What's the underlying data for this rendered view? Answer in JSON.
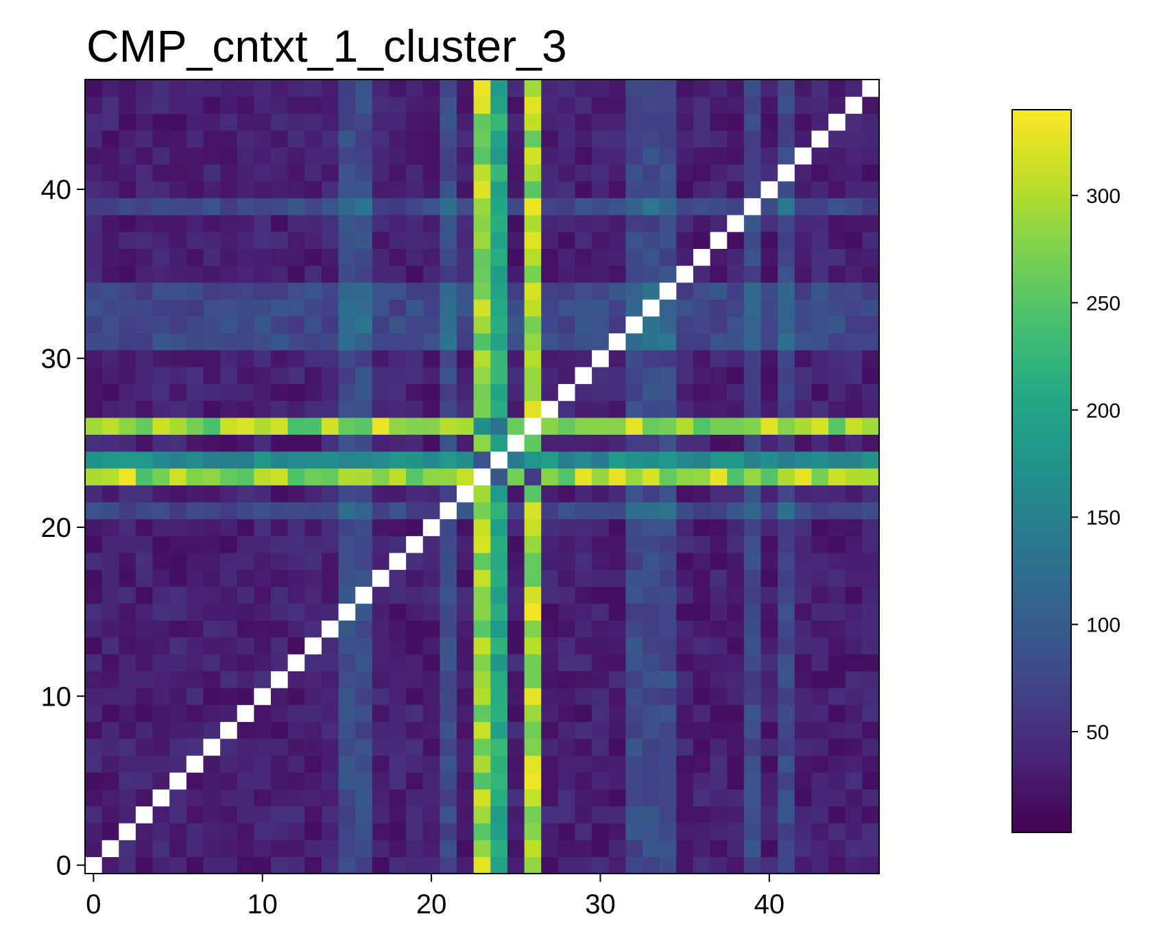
{
  "chart_data": {
    "type": "heatmap",
    "title": "CMP_cntxt_1_cluster_3",
    "xlabel": "",
    "ylabel": "",
    "size": 47,
    "xlim": [
      -0.5,
      46.5
    ],
    "ylim": [
      -0.5,
      46.5
    ],
    "origin": "lower",
    "x_ticks": [
      0,
      10,
      20,
      30,
      40
    ],
    "y_ticks": [
      0,
      10,
      20,
      30,
      40
    ],
    "x_tick_labels": [
      "0",
      "10",
      "20",
      "30",
      "40"
    ],
    "y_tick_labels": [
      "0",
      "10",
      "20",
      "30",
      "40"
    ],
    "colormap": "viridis",
    "colorbar": {
      "range": [
        3,
        340
      ],
      "ticks": [
        50,
        100,
        150,
        200,
        250,
        300
      ],
      "tick_labels": [
        "50",
        "100",
        "150",
        "200",
        "250",
        "300"
      ]
    },
    "diagonal": "missing (drawn white)",
    "base_background": 30,
    "hub_rows": {
      "23": {
        "values_range": [
          240,
          335
        ],
        "note": "bright yellow-green band"
      },
      "24": {
        "values_range": [
          140,
          190
        ],
        "note": "teal band"
      },
      "26": {
        "values_range": [
          240,
          330
        ],
        "note": "bright yellow-green band"
      }
    },
    "hub_cols": {
      "23": {
        "values_range": [
          240,
          335
        ]
      },
      "24": {
        "values_range": [
          180,
          230
        ]
      },
      "26": {
        "values_range": [
          250,
          335
        ]
      }
    },
    "moderate_rows": [
      21,
      31,
      32,
      33,
      34,
      39
    ],
    "moderate_cols": [
      15,
      16,
      21,
      32,
      33,
      34,
      39,
      41
    ]
  },
  "colors": {
    "missing": "#ffffff",
    "frame": "#000000"
  }
}
